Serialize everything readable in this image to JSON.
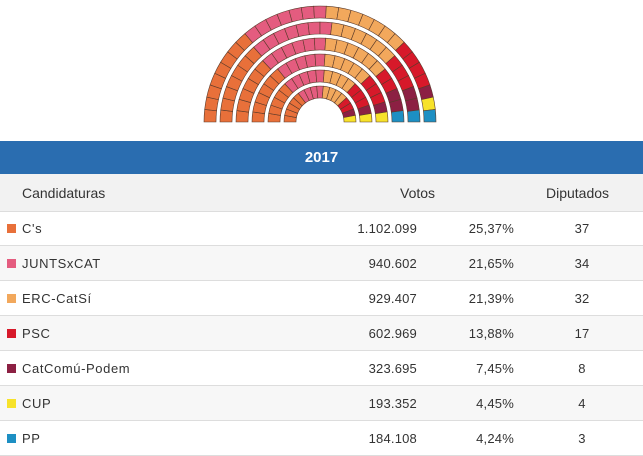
{
  "chart_data": {
    "type": "hemicycle",
    "title": "2017",
    "columns": {
      "candidatura": "Candidaturas",
      "votos": "Votos",
      "diputados": "Diputados"
    },
    "total_seats": 135,
    "parties": [
      {
        "name": "C's",
        "votes": "1.102.099",
        "pct": "25,37%",
        "seats": 37,
        "seats_label": "37",
        "color": "#e8703a"
      },
      {
        "name": "JUNTSxCAT",
        "votes": "940.602",
        "pct": "21,65%",
        "seats": 34,
        "seats_label": "34",
        "color": "#e45c7f"
      },
      {
        "name": "ERC-CatSí",
        "votes": "929.407",
        "pct": "21,39%",
        "seats": 32,
        "seats_label": "32",
        "color": "#f2a85c"
      },
      {
        "name": "PSC",
        "votes": "602.969",
        "pct": "13,88%",
        "seats": 17,
        "seats_label": "17",
        "color": "#d7192a"
      },
      {
        "name": "CatComú-Podem",
        "votes": "323.695",
        "pct": "7,45%",
        "seats": 8,
        "seats_label": "8",
        "color": "#8c2043"
      },
      {
        "name": "CUP",
        "votes": "193.352",
        "pct": "4,45%",
        "seats": 4,
        "seats_label": "4",
        "color": "#f7e22a"
      },
      {
        "name": "PP",
        "votes": "184.108",
        "pct": "4,24%",
        "seats": 3,
        "seats_label": "3",
        "color": "#1d8fc3"
      }
    ]
  }
}
